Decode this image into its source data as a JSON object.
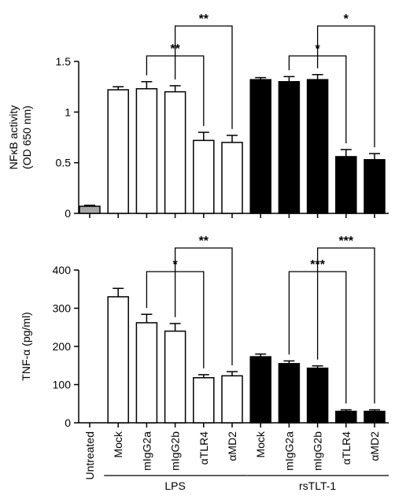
{
  "chart_data": [
    {
      "type": "bar",
      "ylabel_line1": "NFκB activity",
      "ylabel_line2": "(OD 650 nm)",
      "ylim": [
        0,
        1.5
      ],
      "yticks": [
        "0",
        "0.5",
        "1",
        "1.5"
      ],
      "ytick_values": [
        0,
        0.5,
        1,
        1.5
      ],
      "categories": [
        "Untreated",
        "Mock",
        "mIgG2a",
        "mIgG2b",
        "αTLR4",
        "αMD2",
        "Mock",
        "mIgG2a",
        "mIgG2b",
        "αTLR4",
        "αMD2"
      ],
      "values": [
        0.07,
        1.22,
        1.23,
        1.2,
        0.72,
        0.7,
        1.32,
        1.3,
        1.32,
        0.56,
        0.53
      ],
      "errors": [
        0.01,
        0.03,
        0.07,
        0.06,
        0.08,
        0.07,
        0.02,
        0.05,
        0.05,
        0.07,
        0.06
      ],
      "fills": [
        "#a6a6a6",
        "#ffffff",
        "#ffffff",
        "#ffffff",
        "#ffffff",
        "#ffffff",
        "#000000",
        "#000000",
        "#000000",
        "#000000",
        "#000000"
      ],
      "significance": [
        {
          "from": 2,
          "to": 4,
          "label": "**"
        },
        {
          "from": 3,
          "to": 5,
          "label": "**"
        },
        {
          "from": 7,
          "to": 9,
          "label": "*"
        },
        {
          "from": 8,
          "to": 10,
          "label": "*"
        }
      ]
    },
    {
      "type": "bar",
      "ylabel_line1": "TNF-α (pg/ml)",
      "ylim": [
        0,
        400
      ],
      "yticks": [
        "0",
        "100",
        "200",
        "300",
        "400"
      ],
      "ytick_values": [
        0,
        100,
        200,
        300,
        400
      ],
      "categories": [
        "Untreated",
        "Mock",
        "mIgG2a",
        "mIgG2b",
        "αTLR4",
        "αMD2",
        "Mock",
        "mIgG2a",
        "mIgG2b",
        "αTLR4",
        "αMD2"
      ],
      "values": [
        0,
        330,
        262,
        240,
        118,
        123,
        173,
        155,
        143,
        30,
        30
      ],
      "errors": [
        0,
        22,
        22,
        20,
        8,
        11,
        7,
        7,
        6,
        4,
        4
      ],
      "fills": [
        "#a6a6a6",
        "#ffffff",
        "#ffffff",
        "#ffffff",
        "#ffffff",
        "#ffffff",
        "#000000",
        "#000000",
        "#000000",
        "#000000",
        "#000000"
      ],
      "significance": [
        {
          "from": 2,
          "to": 4,
          "label": "*"
        },
        {
          "from": 3,
          "to": 5,
          "label": "**"
        },
        {
          "from": 7,
          "to": 9,
          "label": "***"
        },
        {
          "from": 8,
          "to": 10,
          "label": "***"
        }
      ]
    }
  ],
  "group_labels": [
    {
      "label": "LPS",
      "from": 1,
      "to": 5
    },
    {
      "label": "rsTLT-1",
      "from": 6,
      "to": 10
    }
  ]
}
